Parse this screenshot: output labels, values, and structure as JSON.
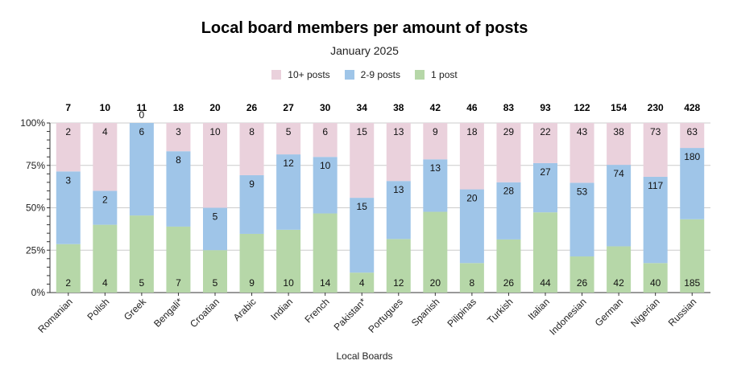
{
  "chart_data": {
    "type": "bar",
    "stacked": "percent",
    "title": "Local board members per amount of posts",
    "subtitle": "January 2025",
    "xlabel": "Local Boards",
    "ylabel": "",
    "ylim": [
      0,
      1
    ],
    "yticks": [
      "0%",
      "25%",
      "50%",
      "75%",
      "100%"
    ],
    "grid": true,
    "legend_position": "top",
    "categories": [
      "Romanian",
      "Polish",
      "Greek",
      "Bengali*",
      "Croatian",
      "Arabic",
      "Indian",
      "French",
      "Pakistan*",
      "Portugues",
      "Spanish",
      "Pilipinas",
      "Turkish",
      "Italian",
      "Indonesian",
      "German",
      "Nigerian",
      "Russian"
    ],
    "totals": [
      7,
      10,
      11,
      18,
      20,
      26,
      27,
      30,
      34,
      38,
      42,
      46,
      83,
      93,
      122,
      154,
      230,
      428
    ],
    "series": [
      {
        "name": "1 post",
        "color": "#b6d7a8",
        "values": [
          2,
          4,
          5,
          7,
          5,
          9,
          10,
          14,
          4,
          12,
          20,
          8,
          26,
          44,
          26,
          42,
          40,
          185
        ]
      },
      {
        "name": "2-9 posts",
        "color": "#9fc5e8",
        "values": [
          3,
          2,
          6,
          8,
          5,
          9,
          12,
          10,
          15,
          13,
          13,
          20,
          28,
          27,
          53,
          74,
          117,
          180
        ]
      },
      {
        "name": "10+ posts",
        "color": "#ead1dc",
        "values": [
          2,
          4,
          0,
          3,
          10,
          8,
          5,
          6,
          15,
          13,
          9,
          18,
          29,
          22,
          43,
          38,
          73,
          63
        ]
      }
    ],
    "legend_order": [
      "10+ posts",
      "2-9 posts",
      "1 post"
    ]
  }
}
